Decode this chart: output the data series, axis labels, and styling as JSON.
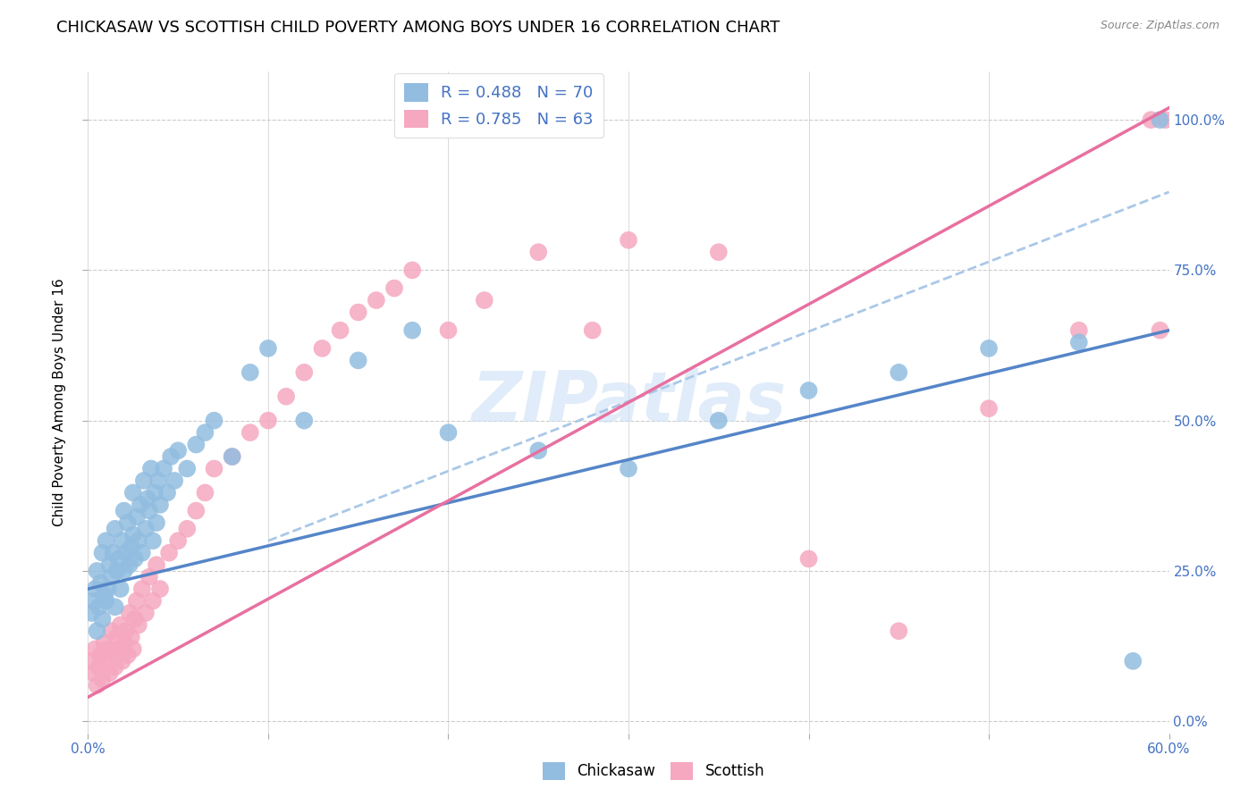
{
  "title": "CHICKASAW VS SCOTTISH CHILD POVERTY AMONG BOYS UNDER 16 CORRELATION CHART",
  "source": "Source: ZipAtlas.com",
  "ylabel": "Child Poverty Among Boys Under 16",
  "xlim": [
    0.0,
    0.6
  ],
  "ylim": [
    -0.02,
    1.08
  ],
  "chickasaw_R": 0.488,
  "chickasaw_N": 70,
  "scottish_R": 0.785,
  "scottish_N": 63,
  "chickasaw_color": "#92bde0",
  "scottish_color": "#f5a8c0",
  "chickasaw_line_color": "#5585c8",
  "scottish_line_color": "#e870a0",
  "dashed_line_color": "#aac8e8",
  "blue_text_color": "#4472c4",
  "title_fontsize": 13,
  "label_fontsize": 11,
  "tick_fontsize": 11,
  "watermark": "ZIPatlas",
  "watermark_color": "#cce0f5",
  "background_color": "#ffffff",
  "grid_color": "#cccccc",
  "chickasaw_line_x0": 0.0,
  "chickasaw_line_y0": 0.22,
  "chickasaw_line_x1": 0.6,
  "chickasaw_line_y1": 0.65,
  "scottish_line_x0": 0.0,
  "scottish_line_y0": 0.04,
  "scottish_line_x1": 0.6,
  "scottish_line_y1": 1.02,
  "dashed_line_x0": 0.1,
  "dashed_line_y0": 0.3,
  "dashed_line_x1": 0.6,
  "dashed_line_y1": 0.88,
  "chickasaw_x": [
    0.002,
    0.003,
    0.004,
    0.005,
    0.005,
    0.006,
    0.007,
    0.008,
    0.008,
    0.009,
    0.01,
    0.01,
    0.011,
    0.012,
    0.013,
    0.014,
    0.015,
    0.015,
    0.016,
    0.017,
    0.018,
    0.019,
    0.02,
    0.02,
    0.021,
    0.022,
    0.023,
    0.024,
    0.025,
    0.025,
    0.026,
    0.027,
    0.028,
    0.029,
    0.03,
    0.031,
    0.032,
    0.033,
    0.034,
    0.035,
    0.036,
    0.037,
    0.038,
    0.039,
    0.04,
    0.042,
    0.044,
    0.046,
    0.048,
    0.05,
    0.055,
    0.06,
    0.065,
    0.07,
    0.08,
    0.09,
    0.1,
    0.12,
    0.15,
    0.18,
    0.2,
    0.25,
    0.3,
    0.35,
    0.4,
    0.45,
    0.5,
    0.55,
    0.58,
    0.595
  ],
  "chickasaw_y": [
    0.18,
    0.2,
    0.22,
    0.15,
    0.25,
    0.19,
    0.23,
    0.17,
    0.28,
    0.21,
    0.2,
    0.3,
    0.22,
    0.26,
    0.24,
    0.28,
    0.19,
    0.32,
    0.25,
    0.27,
    0.22,
    0.3,
    0.25,
    0.35,
    0.28,
    0.33,
    0.26,
    0.29,
    0.31,
    0.38,
    0.27,
    0.34,
    0.3,
    0.36,
    0.28,
    0.4,
    0.32,
    0.37,
    0.35,
    0.42,
    0.3,
    0.38,
    0.33,
    0.4,
    0.36,
    0.42,
    0.38,
    0.44,
    0.4,
    0.45,
    0.42,
    0.46,
    0.48,
    0.5,
    0.44,
    0.58,
    0.62,
    0.5,
    0.6,
    0.65,
    0.48,
    0.45,
    0.42,
    0.5,
    0.55,
    0.58,
    0.62,
    0.63,
    0.1,
    1.0
  ],
  "scottish_x": [
    0.002,
    0.003,
    0.004,
    0.005,
    0.006,
    0.007,
    0.008,
    0.009,
    0.01,
    0.011,
    0.012,
    0.013,
    0.014,
    0.015,
    0.016,
    0.017,
    0.018,
    0.019,
    0.02,
    0.021,
    0.022,
    0.023,
    0.024,
    0.025,
    0.026,
    0.027,
    0.028,
    0.03,
    0.032,
    0.034,
    0.036,
    0.038,
    0.04,
    0.045,
    0.05,
    0.055,
    0.06,
    0.065,
    0.07,
    0.08,
    0.09,
    0.1,
    0.11,
    0.12,
    0.13,
    0.14,
    0.15,
    0.16,
    0.17,
    0.18,
    0.2,
    0.22,
    0.25,
    0.28,
    0.3,
    0.35,
    0.4,
    0.45,
    0.5,
    0.55,
    0.59,
    0.595,
    0.598
  ],
  "scottish_y": [
    0.1,
    0.08,
    0.12,
    0.06,
    0.09,
    0.11,
    0.07,
    0.13,
    0.1,
    0.12,
    0.08,
    0.15,
    0.11,
    0.09,
    0.14,
    0.12,
    0.16,
    0.1,
    0.13,
    0.15,
    0.11,
    0.18,
    0.14,
    0.12,
    0.17,
    0.2,
    0.16,
    0.22,
    0.18,
    0.24,
    0.2,
    0.26,
    0.22,
    0.28,
    0.3,
    0.32,
    0.35,
    0.38,
    0.42,
    0.44,
    0.48,
    0.5,
    0.54,
    0.58,
    0.62,
    0.65,
    0.68,
    0.7,
    0.72,
    0.75,
    0.65,
    0.7,
    0.78,
    0.65,
    0.8,
    0.78,
    0.27,
    0.15,
    0.52,
    0.65,
    1.0,
    0.65,
    1.0
  ]
}
